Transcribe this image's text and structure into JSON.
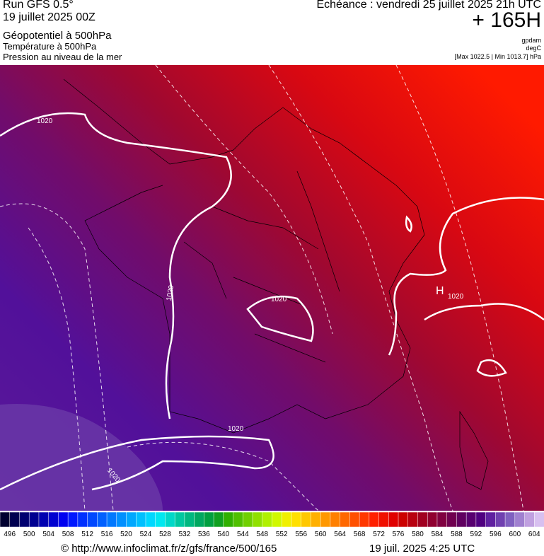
{
  "header": {
    "run": "Run GFS 0.5°",
    "date": "19 juillet 2025 00Z",
    "field1": "Géopotentiel à 500hPa",
    "field2": "Température à 500hPa",
    "field3": "Pression au niveau de la mer",
    "valid": "Echéance : vendredi 25 juillet 2025 21h UTC",
    "lead": "+ 165H",
    "unit1": "gpdam",
    "unit2": "degC",
    "range": "[Max 1022.5 | Min 1013.7] hPa"
  },
  "map": {
    "labels": [
      "1020",
      "1020",
      "1020",
      "1020",
      "1020",
      "1020",
      "H"
    ]
  },
  "colorbar": {
    "labels": [
      496,
      500,
      504,
      508,
      512,
      516,
      520,
      524,
      528,
      532,
      536,
      540,
      544,
      548,
      552,
      556,
      560,
      564,
      568,
      572,
      576,
      580,
      584,
      588,
      592,
      596,
      600,
      604
    ],
    "colors": [
      "#000030",
      "#000050",
      "#000070",
      "#000090",
      "#0000b0",
      "#0000d0",
      "#0000f0",
      "#0018ff",
      "#0030ff",
      "#0048ff",
      "#0060ff",
      "#0078ff",
      "#0090ff",
      "#00a8ff",
      "#00c0ff",
      "#00d8ff",
      "#00e8f0",
      "#00d8c8",
      "#00c8a0",
      "#00b880",
      "#00a860",
      "#00a040",
      "#10a020",
      "#30b000",
      "#50c000",
      "#70d000",
      "#90e000",
      "#b0f000",
      "#d0f800",
      "#f0f000",
      "#ffe000",
      "#ffc800",
      "#ffb000",
      "#ff9800",
      "#ff8000",
      "#ff6800",
      "#ff5000",
      "#ff3800",
      "#ff2000",
      "#f01000",
      "#e00000",
      "#cc0000",
      "#b80010",
      "#a00020",
      "#900030",
      "#800040",
      "#700050",
      "#600060",
      "#580070",
      "#500080",
      "#6020a0",
      "#7040b0",
      "#8060c0",
      "#a080d0",
      "#c0a0e0",
      "#d8c0f0"
    ]
  },
  "footer": {
    "url": "© http://www.infoclimat.fr/z/gfs/france/500/165",
    "stamp": "19 juil. 2025  4:25 UTC"
  }
}
